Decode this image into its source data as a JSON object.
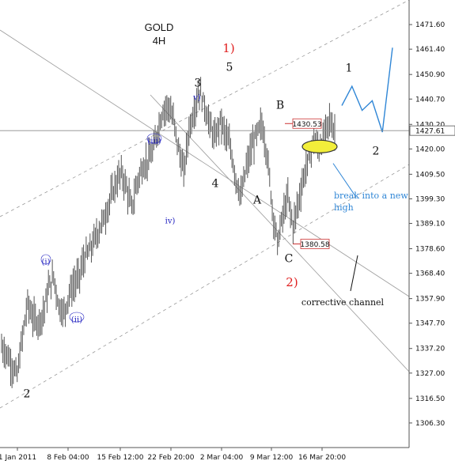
{
  "chart_data": {
    "type": "candlestick",
    "title": "GOLD",
    "subtitle": "4H",
    "y_ticks": [
      1306.3,
      1316.5,
      1327.0,
      1337.2,
      1347.7,
      1357.9,
      1368.4,
      1378.6,
      1389.1,
      1399.3,
      1409.5,
      1420.0,
      1430.2,
      1440.7,
      1450.9,
      1461.4,
      1471.6
    ],
    "ylim": [
      1296.1,
      1481.8
    ],
    "x_ticks": [
      "1 Jan 2011",
      "8 Feb 04:00",
      "15 Feb 12:00",
      "22 Feb 20:00",
      "2 Mar 04:00",
      "9 Mar 12:00",
      "16 Mar 20:00"
    ],
    "current_price": "1427.61",
    "price_boxes": [
      {
        "label": "1430.53",
        "value": 1430.53
      },
      {
        "label": "1380.58",
        "value": 1380.58
      }
    ],
    "price_path": [
      [
        0,
        1338
      ],
      [
        2,
        1335
      ],
      [
        4,
        1330
      ],
      [
        6,
        1326
      ],
      [
        8,
        1342
      ],
      [
        10,
        1356
      ],
      [
        12,
        1350
      ],
      [
        14,
        1348
      ],
      [
        16,
        1352
      ],
      [
        18,
        1362
      ],
      [
        20,
        1367
      ],
      [
        22,
        1355
      ],
      [
        24,
        1352
      ],
      [
        26,
        1360
      ],
      [
        28,
        1364
      ],
      [
        30,
        1368
      ],
      [
        32,
        1375
      ],
      [
        34,
        1378
      ],
      [
        36,
        1383
      ],
      [
        38,
        1388
      ],
      [
        40,
        1393
      ],
      [
        42,
        1400
      ],
      [
        44,
        1406
      ],
      [
        46,
        1410
      ],
      [
        48,
        1404
      ],
      [
        50,
        1395
      ],
      [
        52,
        1406
      ],
      [
        54,
        1412
      ],
      [
        56,
        1415
      ],
      [
        58,
        1418
      ],
      [
        60,
        1428
      ],
      [
        62,
        1436
      ],
      [
        64,
        1438
      ],
      [
        66,
        1432
      ],
      [
        68,
        1420
      ],
      [
        70,
        1410
      ],
      [
        72,
        1428
      ],
      [
        74,
        1436
      ],
      [
        76,
        1444
      ],
      [
        78,
        1438
      ],
      [
        80,
        1430
      ],
      [
        82,
        1424
      ],
      [
        84,
        1432
      ],
      [
        86,
        1426
      ],
      [
        88,
        1420
      ],
      [
        90,
        1408
      ],
      [
        92,
        1400
      ],
      [
        94,
        1412
      ],
      [
        96,
        1420
      ],
      [
        98,
        1426
      ],
      [
        100,
        1430
      ],
      [
        102,
        1418
      ],
      [
        104,
        1396
      ],
      [
        106,
        1381
      ],
      [
        108,
        1392
      ],
      [
        110,
        1400
      ],
      [
        112,
        1388
      ],
      [
        114,
        1398
      ],
      [
        116,
        1408
      ],
      [
        118,
        1416
      ],
      [
        120,
        1424
      ],
      [
        122,
        1420
      ],
      [
        124,
        1426
      ],
      [
        126,
        1432
      ],
      [
        128,
        1427
      ]
    ],
    "forecast_path": [
      [
        0,
        1438
      ],
      [
        1,
        1446
      ],
      [
        2,
        1436
      ],
      [
        3,
        1440
      ],
      [
        4,
        1427
      ],
      [
        5,
        1462
      ]
    ],
    "wave_labels": [
      {
        "text": "2",
        "style": "plain"
      },
      {
        "text": "(i)",
        "style": "circle-blue"
      },
      {
        "text": "(ii)",
        "style": "circle-blue"
      },
      {
        "text": "(iii)",
        "style": "circle-blue"
      },
      {
        "text": "iv)",
        "style": "blue"
      },
      {
        "text": "v)",
        "style": "blue"
      },
      {
        "text": "3",
        "style": "plain"
      },
      {
        "text": "4",
        "style": "plain"
      },
      {
        "text": "5",
        "style": "plain"
      },
      {
        "text": "1)",
        "style": "red"
      },
      {
        "text": "A",
        "style": "plain"
      },
      {
        "text": "B",
        "style": "plain"
      },
      {
        "text": "C",
        "style": "plain"
      },
      {
        "text": "2)",
        "style": "red"
      },
      {
        "text": "1",
        "style": "plain"
      },
      {
        "text": "2",
        "style": "plain"
      }
    ],
    "annotations": {
      "break_note": "break into a new high",
      "channel_note": "corrective channel"
    },
    "colors": {
      "price": "#555555",
      "forecast": "#2f86d6",
      "wave_red": "#e02020",
      "wave_blue": "#2020c0",
      "highlight": "#f2ee3a",
      "box_border": "#cc3333"
    },
    "grid": false,
    "legend": "none"
  }
}
